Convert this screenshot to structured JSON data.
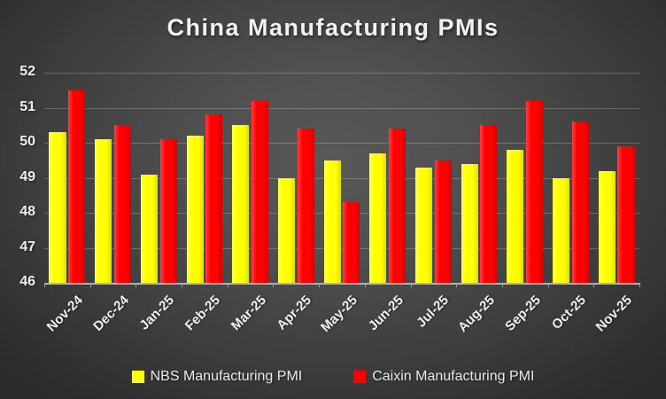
{
  "chart_data": {
    "type": "bar",
    "title": "China Manufacturing PMIs",
    "categories": [
      "Nov-24",
      "Dec-24",
      "Jan-25",
      "Feb-25",
      "Mar-25",
      "Apr-25",
      "May-25",
      "Jun-25",
      "Jul-25",
      "Aug-25",
      "Sep-25",
      "Oct-25",
      "Nov-25"
    ],
    "series": [
      {
        "name": "NBS Manufacturing PMI",
        "color": "#ffff00",
        "values": [
          50.3,
          50.1,
          49.1,
          50.2,
          50.5,
          49.0,
          49.5,
          49.7,
          49.3,
          49.4,
          49.8,
          49.0,
          49.2
        ]
      },
      {
        "name": "Caixin Manufacturing PMI",
        "color": "#ff0000",
        "values": [
          51.5,
          50.5,
          50.1,
          50.8,
          51.2,
          50.4,
          48.3,
          50.4,
          49.5,
          50.5,
          51.2,
          50.6,
          49.9
        ]
      }
    ],
    "xlabel": "",
    "ylabel": "",
    "ylim": [
      46,
      52
    ],
    "yticks": [
      46,
      47,
      48,
      49,
      50,
      51,
      52
    ],
    "grid": true,
    "legend_position": "bottom",
    "background": "dark-gray-gradient"
  }
}
